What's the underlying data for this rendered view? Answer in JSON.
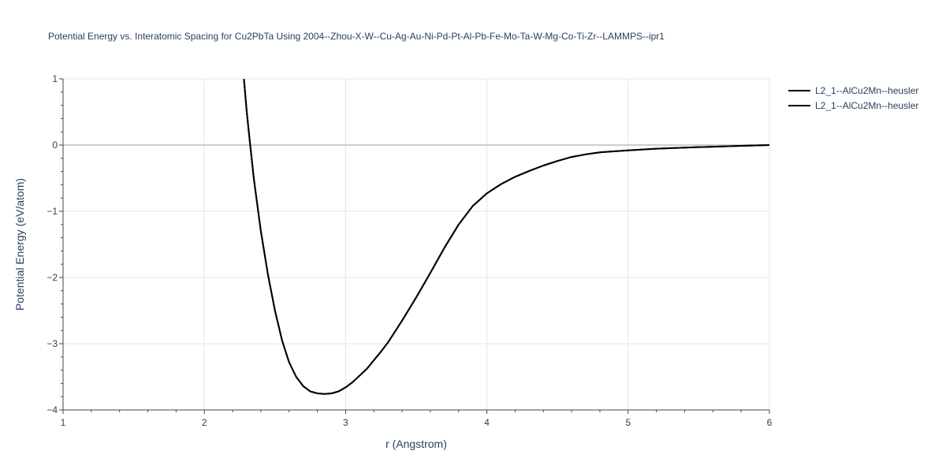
{
  "chart_data": {
    "type": "line",
    "title": "Potential Energy vs. Interatomic Spacing for Cu2PbTa Using 2004--Zhou-X-W--Cu-Ag-Au-Ni-Pd-Pt-Al-Pb-Fe-Mo-Ta-W-Mg-Co-Ti-Zr--LAMMPS--ipr1",
    "xlabel": "r (Angstrom)",
    "ylabel": "Potential Energy (eV/atom)",
    "xlim": [
      1,
      6
    ],
    "ylim": [
      -4,
      1
    ],
    "x_ticks": [
      "1",
      "2",
      "3",
      "4",
      "5",
      "6"
    ],
    "y_ticks": [
      "1",
      "0",
      "−1",
      "−2",
      "−3",
      "−4"
    ],
    "grid": true,
    "legend_position": "top-right",
    "series": [
      {
        "name": "L2_1--AlCu2Mn--heusler",
        "color": "#000000",
        "x": [
          2.28,
          2.3,
          2.32,
          2.35,
          2.4,
          2.45,
          2.5,
          2.55,
          2.6,
          2.65,
          2.7,
          2.75,
          2.8,
          2.85,
          2.9,
          2.95,
          3.0,
          3.05,
          3.1,
          3.15,
          3.2,
          3.25,
          3.3,
          3.4,
          3.5,
          3.6,
          3.7,
          3.8,
          3.9,
          4.0,
          4.1,
          4.2,
          4.3,
          4.4,
          4.5,
          4.6,
          4.7,
          4.8,
          5.0,
          5.2,
          5.4,
          5.6,
          5.8,
          6.0
        ],
        "y": [
          1.0,
          0.5,
          0.1,
          -0.5,
          -1.3,
          -1.95,
          -2.5,
          -2.95,
          -3.28,
          -3.5,
          -3.64,
          -3.72,
          -3.75,
          -3.76,
          -3.75,
          -3.72,
          -3.66,
          -3.58,
          -3.48,
          -3.38,
          -3.25,
          -3.12,
          -2.98,
          -2.65,
          -2.3,
          -1.93,
          -1.55,
          -1.2,
          -0.92,
          -0.73,
          -0.59,
          -0.48,
          -0.39,
          -0.31,
          -0.24,
          -0.18,
          -0.14,
          -0.11,
          -0.08,
          -0.055,
          -0.038,
          -0.025,
          -0.012,
          0.0
        ]
      },
      {
        "name": "L2_1--AlCu2Mn--heusler",
        "color": "#000000",
        "x": [
          2.28,
          2.3,
          2.32,
          2.35,
          2.4,
          2.45,
          2.5,
          2.55,
          2.6,
          2.65,
          2.7,
          2.75,
          2.8,
          2.85,
          2.9,
          2.95,
          3.0,
          3.05,
          3.1,
          3.15,
          3.2,
          3.25,
          3.3,
          3.4,
          3.5,
          3.6,
          3.7,
          3.8,
          3.9,
          4.0,
          4.1,
          4.2,
          4.3,
          4.4,
          4.5,
          4.6,
          4.7,
          4.8,
          5.0,
          5.2,
          5.4,
          5.6,
          5.8,
          6.0
        ],
        "y": [
          1.0,
          0.5,
          0.1,
          -0.5,
          -1.3,
          -1.95,
          -2.5,
          -2.95,
          -3.28,
          -3.5,
          -3.64,
          -3.72,
          -3.75,
          -3.76,
          -3.75,
          -3.72,
          -3.66,
          -3.58,
          -3.48,
          -3.38,
          -3.25,
          -3.12,
          -2.98,
          -2.65,
          -2.3,
          -1.93,
          -1.55,
          -1.2,
          -0.92,
          -0.73,
          -0.59,
          -0.48,
          -0.39,
          -0.31,
          -0.24,
          -0.18,
          -0.14,
          -0.11,
          -0.08,
          -0.055,
          -0.038,
          -0.025,
          -0.012,
          0.0
        ]
      }
    ]
  }
}
